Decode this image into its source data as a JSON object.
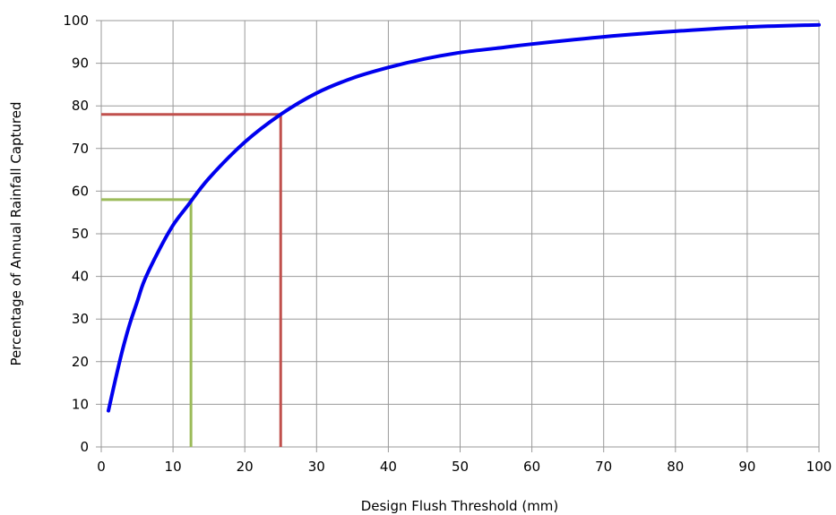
{
  "chart_data": {
    "type": "line",
    "xlabel": "Design Flush Threshold (mm)",
    "ylabel": "Percentage of Annual Rainfall Captured",
    "xlim": [
      0,
      100
    ],
    "ylim": [
      0,
      100
    ],
    "x_ticks": [
      0,
      10,
      20,
      30,
      40,
      50,
      60,
      70,
      80,
      90,
      100
    ],
    "y_ticks": [
      0,
      10,
      20,
      30,
      40,
      50,
      60,
      70,
      80,
      90,
      100
    ],
    "grid": true,
    "series": [
      {
        "color": "#0000ee",
        "x": [
          1,
          2,
          3,
          4,
          5,
          6,
          8,
          10,
          12,
          15,
          20,
          25,
          30,
          35,
          40,
          45,
          50,
          55,
          60,
          70,
          80,
          90,
          100
        ],
        "y": [
          8.5,
          16,
          23,
          29,
          34,
          39,
          46,
          52,
          56.5,
          63,
          71.5,
          78,
          83,
          86.5,
          89,
          91,
          92.5,
          93.5,
          94.5,
          96.2,
          97.5,
          98.5,
          99
        ]
      }
    ],
    "reference_lines": [
      {
        "color": "#c0504d",
        "x": 25,
        "y": 78
      },
      {
        "color": "#9bbb59",
        "x": 12.5,
        "y": 58
      }
    ]
  }
}
